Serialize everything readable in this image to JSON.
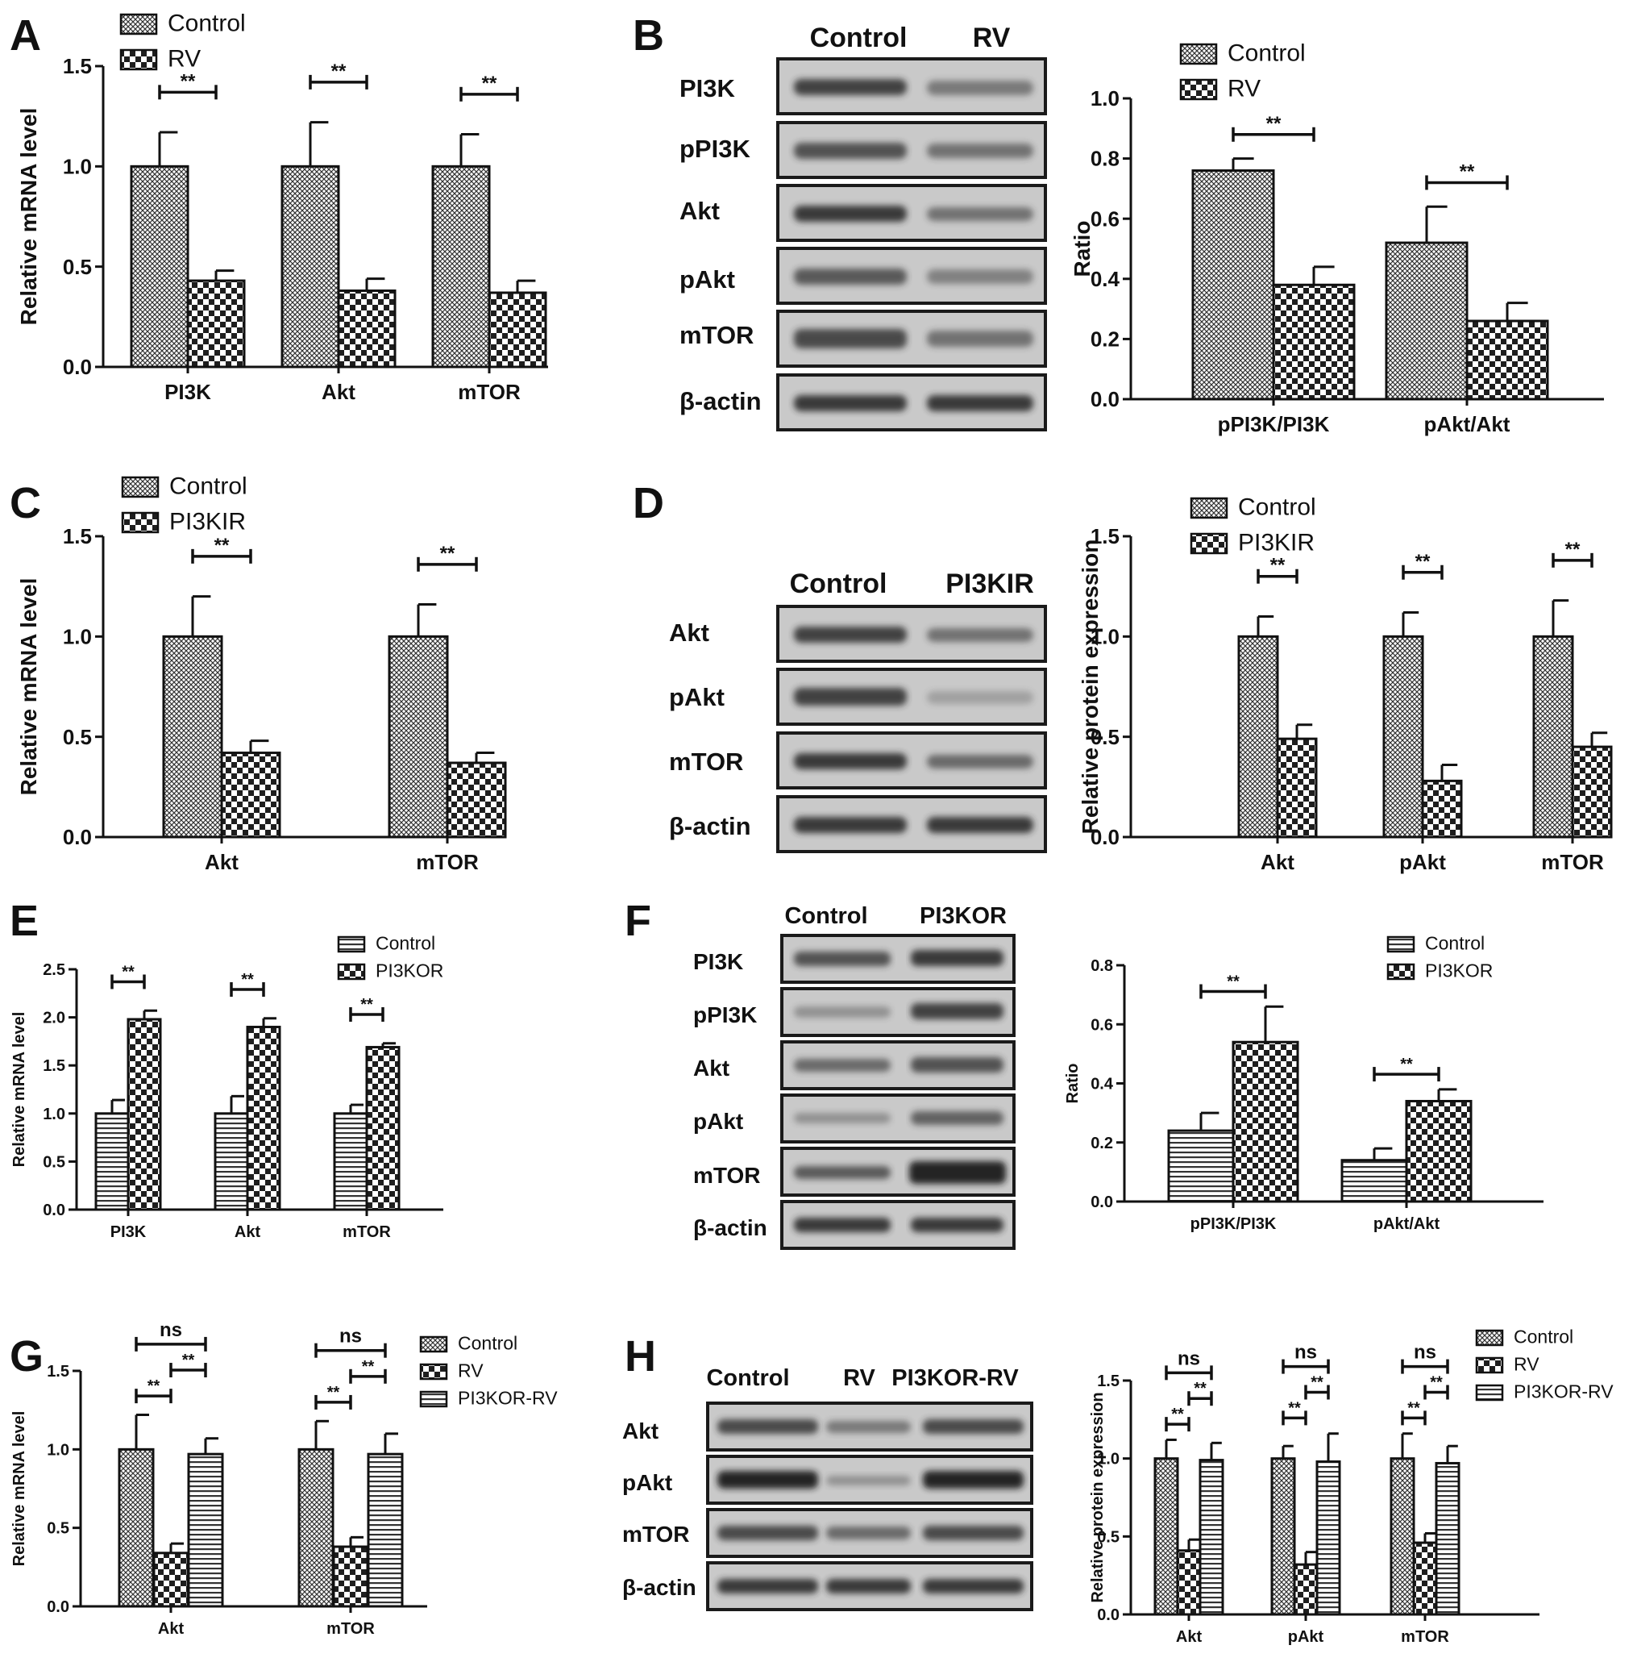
{
  "colors": {
    "ink": "#111111",
    "bar_fill": "#ffffff",
    "blot_band": "#2c2c2c",
    "blot_bg": "#c9c9c9",
    "blot_frame": "#1a1a1a"
  },
  "panels": {
    "A": {
      "letter": "A"
    },
    "B": {
      "letter": "B",
      "blot": {
        "headers": [
          "Control",
          "RV"
        ],
        "rows": [
          "PI3K",
          "pPI3K",
          "Akt",
          "pAkt",
          "mTOR",
          "β-actin"
        ]
      }
    },
    "C": {
      "letter": "C"
    },
    "D": {
      "letter": "D",
      "blot": {
        "headers": [
          "Control",
          "PI3KIR"
        ],
        "rows": [
          "Akt",
          "pAkt",
          "mTOR",
          "β-actin"
        ]
      }
    },
    "E": {
      "letter": "E"
    },
    "F": {
      "letter": "F",
      "blot": {
        "headers": [
          "Control",
          "PI3KOR"
        ],
        "rows": [
          "PI3K",
          "pPI3K",
          "Akt",
          "pAkt",
          "mTOR",
          "β-actin"
        ]
      }
    },
    "G": {
      "letter": "G"
    },
    "H": {
      "letter": "H",
      "blot": {
        "headers": [
          "Control",
          "RV",
          "PI3KOR-RV"
        ],
        "rows": [
          "Akt",
          "pAkt",
          "mTOR",
          "β-actin"
        ]
      }
    }
  },
  "chart_data": [
    {
      "panel": "A",
      "type": "bar",
      "ylabel": "Relative mRNA level",
      "ylim": [
        0,
        1.5
      ],
      "yticks": [
        "0.0",
        "0.5",
        "1.0",
        "1.5"
      ],
      "categories": [
        "PI3K",
        "Akt",
        "mTOR"
      ],
      "legend_position": "top-left",
      "series": [
        {
          "name": "Control",
          "pattern": "fine",
          "values": [
            1.0,
            1.0,
            1.0
          ],
          "errors": [
            0.17,
            0.22,
            0.16
          ]
        },
        {
          "name": "RV",
          "pattern": "check",
          "values": [
            0.43,
            0.38,
            0.37
          ],
          "errors": [
            0.05,
            0.06,
            0.06
          ]
        }
      ],
      "comparisons": [
        {
          "category": 0,
          "from": 0,
          "to": 1,
          "label": "**"
        },
        {
          "category": 1,
          "from": 0,
          "to": 1,
          "label": "**"
        },
        {
          "category": 2,
          "from": 0,
          "to": 1,
          "label": "**"
        }
      ]
    },
    {
      "panel": "B",
      "type": "bar",
      "ylabel": "Ratio",
      "ylim": [
        0,
        1.0
      ],
      "yticks": [
        "0.0",
        "0.2",
        "0.4",
        "0.6",
        "0.8",
        "1.0"
      ],
      "categories": [
        "pPI3K/PI3K",
        "pAkt/Akt"
      ],
      "legend_position": "top-left",
      "series": [
        {
          "name": "Control",
          "pattern": "fine",
          "values": [
            0.76,
            0.52
          ],
          "errors": [
            0.04,
            0.12
          ]
        },
        {
          "name": "RV",
          "pattern": "check",
          "values": [
            0.38,
            0.26
          ],
          "errors": [
            0.06,
            0.06
          ]
        }
      ],
      "comparisons": [
        {
          "category": 0,
          "from": 0,
          "to": 1,
          "label": "**"
        },
        {
          "category": 1,
          "from": 0,
          "to": 1,
          "label": "**"
        }
      ]
    },
    {
      "panel": "C",
      "type": "bar",
      "ylabel": "Relative mRNA level",
      "ylim": [
        0,
        1.5
      ],
      "yticks": [
        "0.0",
        "0.5",
        "1.0",
        "1.5"
      ],
      "categories": [
        "Akt",
        "mTOR"
      ],
      "legend_position": "top-left",
      "series": [
        {
          "name": "Control",
          "pattern": "fine",
          "values": [
            1.0,
            1.0
          ],
          "errors": [
            0.2,
            0.16
          ]
        },
        {
          "name": "PI3KIR",
          "pattern": "check",
          "values": [
            0.42,
            0.37
          ],
          "errors": [
            0.06,
            0.05
          ]
        }
      ],
      "comparisons": [
        {
          "category": 0,
          "from": 0,
          "to": 1,
          "label": "**"
        },
        {
          "category": 1,
          "from": 0,
          "to": 1,
          "label": "**"
        }
      ]
    },
    {
      "panel": "D",
      "type": "bar",
      "ylabel": "Relative protein expression",
      "ylim": [
        0,
        1.5
      ],
      "yticks": [
        "0.0",
        "0.5",
        "1.0",
        "1.5"
      ],
      "categories": [
        "Akt",
        "pAkt",
        "mTOR"
      ],
      "legend_position": "top-left",
      "series": [
        {
          "name": "Control",
          "pattern": "fine",
          "values": [
            1.0,
            1.0,
            1.0
          ],
          "errors": [
            0.1,
            0.12,
            0.18
          ]
        },
        {
          "name": "PI3KIR",
          "pattern": "check",
          "values": [
            0.49,
            0.28,
            0.45
          ],
          "errors": [
            0.07,
            0.08,
            0.07
          ]
        }
      ],
      "comparisons": [
        {
          "category": 0,
          "from": 0,
          "to": 1,
          "label": "**"
        },
        {
          "category": 1,
          "from": 0,
          "to": 1,
          "label": "**"
        },
        {
          "category": 2,
          "from": 0,
          "to": 1,
          "label": "**"
        }
      ]
    },
    {
      "panel": "E",
      "type": "bar",
      "ylabel": "Relative mRNA level",
      "ylim": [
        0,
        2.5
      ],
      "yticks": [
        "0.0",
        "0.5",
        "1.0",
        "1.5",
        "2.0",
        "2.5"
      ],
      "categories": [
        "PI3K",
        "Akt",
        "mTOR"
      ],
      "legend_position": "top-right",
      "series": [
        {
          "name": "Control",
          "pattern": "hstripe",
          "values": [
            1.0,
            1.0,
            1.0
          ],
          "errors": [
            0.14,
            0.18,
            0.09
          ]
        },
        {
          "name": "PI3KOR",
          "pattern": "check",
          "values": [
            1.98,
            1.9,
            1.69
          ],
          "errors": [
            0.09,
            0.09,
            0.04
          ]
        }
      ],
      "comparisons": [
        {
          "category": 0,
          "from": 0,
          "to": 1,
          "label": "**"
        },
        {
          "category": 1,
          "from": 0,
          "to": 1,
          "label": "**"
        },
        {
          "category": 2,
          "from": 0,
          "to": 1,
          "label": "**"
        }
      ]
    },
    {
      "panel": "F",
      "type": "bar",
      "ylabel": "Ratio",
      "ylim": [
        0,
        0.8
      ],
      "yticks": [
        "0.0",
        "0.2",
        "0.4",
        "0.6",
        "0.8"
      ],
      "categories": [
        "pPI3K/PI3K",
        "pAkt/Akt"
      ],
      "legend_position": "top-right",
      "series": [
        {
          "name": "Control",
          "pattern": "hstripe",
          "values": [
            0.24,
            0.14
          ],
          "errors": [
            0.06,
            0.04
          ]
        },
        {
          "name": "PI3KOR",
          "pattern": "check",
          "values": [
            0.54,
            0.34
          ],
          "errors": [
            0.12,
            0.04
          ]
        }
      ],
      "comparisons": [
        {
          "category": 0,
          "from": 0,
          "to": 1,
          "label": "**"
        },
        {
          "category": 1,
          "from": 0,
          "to": 1,
          "label": "**"
        }
      ]
    },
    {
      "panel": "G",
      "type": "bar",
      "ylabel": "Relative mRNA level",
      "ylim": [
        0,
        1.5
      ],
      "yticks": [
        "0.0",
        "0.5",
        "1.0",
        "1.5"
      ],
      "categories": [
        "Akt",
        "mTOR"
      ],
      "legend_position": "right",
      "series": [
        {
          "name": "Control",
          "pattern": "fine",
          "values": [
            1.0,
            1.0
          ],
          "errors": [
            0.22,
            0.18
          ]
        },
        {
          "name": "RV",
          "pattern": "check",
          "values": [
            0.34,
            0.38
          ],
          "errors": [
            0.06,
            0.06
          ]
        },
        {
          "name": "PI3KOR-RV",
          "pattern": "hstripe",
          "values": [
            0.97,
            0.97
          ],
          "errors": [
            0.1,
            0.13
          ]
        }
      ],
      "comparisons": [
        {
          "category": 0,
          "from": 0,
          "to": 2,
          "label": "ns",
          "level": 2
        },
        {
          "category": 0,
          "from": 0,
          "to": 1,
          "label": "**",
          "level": 0
        },
        {
          "category": 0,
          "from": 1,
          "to": 2,
          "label": "**",
          "level": 1
        },
        {
          "category": 1,
          "from": 0,
          "to": 2,
          "label": "ns",
          "level": 2
        },
        {
          "category": 1,
          "from": 0,
          "to": 1,
          "label": "**",
          "level": 0
        },
        {
          "category": 1,
          "from": 1,
          "to": 2,
          "label": "**",
          "level": 1
        }
      ]
    },
    {
      "panel": "H",
      "type": "bar",
      "ylabel": "Relative protein expression",
      "ylim": [
        0,
        1.5
      ],
      "yticks": [
        "0.0",
        "0.5",
        "1.0",
        "1.5"
      ],
      "categories": [
        "Akt",
        "pAkt",
        "mTOR"
      ],
      "legend_position": "right",
      "series": [
        {
          "name": "Control",
          "pattern": "fine",
          "values": [
            1.0,
            1.0,
            1.0
          ],
          "errors": [
            0.12,
            0.08,
            0.16
          ]
        },
        {
          "name": "RV",
          "pattern": "check",
          "values": [
            0.41,
            0.32,
            0.46
          ],
          "errors": [
            0.07,
            0.08,
            0.06
          ]
        },
        {
          "name": "PI3KOR-RV",
          "pattern": "hstripe",
          "values": [
            0.99,
            0.98,
            0.97
          ],
          "errors": [
            0.11,
            0.18,
            0.11
          ]
        }
      ],
      "comparisons": [
        {
          "category": 0,
          "from": 0,
          "to": 2,
          "label": "ns",
          "level": 2
        },
        {
          "category": 0,
          "from": 0,
          "to": 1,
          "label": "**",
          "level": 0
        },
        {
          "category": 0,
          "from": 1,
          "to": 2,
          "label": "**",
          "level": 1
        },
        {
          "category": 1,
          "from": 0,
          "to": 2,
          "label": "ns",
          "level": 2
        },
        {
          "category": 1,
          "from": 0,
          "to": 1,
          "label": "**",
          "level": 0
        },
        {
          "category": 1,
          "from": 1,
          "to": 2,
          "label": "**",
          "level": 1
        },
        {
          "category": 2,
          "from": 0,
          "to": 2,
          "label": "ns",
          "level": 2
        },
        {
          "category": 2,
          "from": 0,
          "to": 1,
          "label": "**",
          "level": 0
        },
        {
          "category": 2,
          "from": 1,
          "to": 2,
          "label": "**",
          "level": 1
        }
      ]
    }
  ]
}
